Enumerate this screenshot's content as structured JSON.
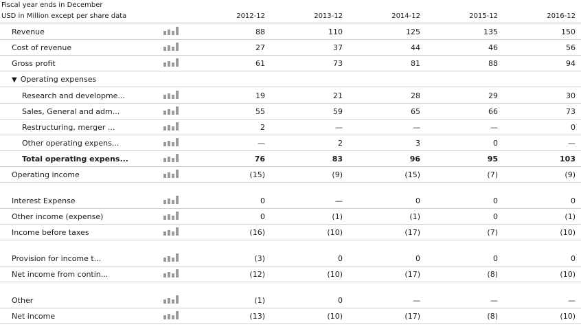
{
  "header": {
    "line1": "Fiscal year ends in December",
    "line2": "USD in Million except per share data",
    "years": [
      "2012-12",
      "2013-12",
      "2014-12",
      "2015-12",
      "2016-12"
    ]
  },
  "rows": [
    {
      "label": "Revenue",
      "values": [
        "88",
        "110",
        "125",
        "135",
        "150"
      ],
      "indent": 0,
      "bold": false,
      "spark": true,
      "lined": true
    },
    {
      "label": "Cost of revenue",
      "values": [
        "27",
        "37",
        "44",
        "46",
        "56"
      ],
      "indent": 0,
      "bold": false,
      "spark": true,
      "lined": true
    },
    {
      "label": "Gross profit",
      "values": [
        "61",
        "73",
        "81",
        "88",
        "94"
      ],
      "indent": 0,
      "bold": false,
      "spark": true,
      "lined": true
    },
    {
      "label": "Operating expenses",
      "values": [
        "",
        "",
        "",
        "",
        ""
      ],
      "indent": 0,
      "bold": false,
      "spark": false,
      "lined": true,
      "toggle": "▼"
    },
    {
      "label": "Research and developme...",
      "values": [
        "19",
        "21",
        "28",
        "29",
        "30"
      ],
      "indent": 1,
      "bold": false,
      "spark": true,
      "lined": true
    },
    {
      "label": "Sales, General and adm...",
      "values": [
        "55",
        "59",
        "65",
        "66",
        "73"
      ],
      "indent": 1,
      "bold": false,
      "spark": true,
      "lined": true
    },
    {
      "label": "Restructuring, merger ...",
      "values": [
        "2",
        "—",
        "—",
        "—",
        "0"
      ],
      "indent": 1,
      "bold": false,
      "spark": true,
      "lined": true
    },
    {
      "label": "Other operating expens...",
      "values": [
        "—",
        "2",
        "3",
        "0",
        "—"
      ],
      "indent": 1,
      "bold": false,
      "spark": true,
      "lined": true
    },
    {
      "label": "Total operating expens...",
      "values": [
        "76",
        "83",
        "96",
        "95",
        "103"
      ],
      "indent": 1,
      "bold": true,
      "spark": true,
      "lined": true
    },
    {
      "label": "Operating income",
      "values": [
        "(15)",
        "(9)",
        "(15)",
        "(7)",
        "(9)"
      ],
      "indent": 0,
      "bold": false,
      "spark": true,
      "lined": true
    },
    {
      "label": "Interest Expense",
      "values": [
        "0",
        "—",
        "0",
        "0",
        "0"
      ],
      "indent": 0,
      "bold": false,
      "spark": true,
      "lined": true
    },
    {
      "label": "Other income (expense)",
      "values": [
        "0",
        "(1)",
        "(1)",
        "0",
        "(1)"
      ],
      "indent": 0,
      "bold": false,
      "spark": true,
      "lined": true
    },
    {
      "label": "Income before taxes",
      "values": [
        "(16)",
        "(10)",
        "(17)",
        "(7)",
        "(10)"
      ],
      "indent": 0,
      "bold": false,
      "spark": true,
      "lined": true
    },
    {
      "label": "Provision for income t...",
      "values": [
        "(3)",
        "0",
        "0",
        "0",
        "0"
      ],
      "indent": 0,
      "bold": false,
      "spark": true,
      "lined": true
    },
    {
      "label": "Net income from contin...",
      "values": [
        "(12)",
        "(10)",
        "(17)",
        "(8)",
        "(10)"
      ],
      "indent": 0,
      "bold": false,
      "spark": true,
      "lined": true
    },
    {
      "label": "Other",
      "values": [
        "(1)",
        "0",
        "—",
        "—",
        "—"
      ],
      "indent": 0,
      "bold": false,
      "spark": true,
      "lined": true
    },
    {
      "label": "Net income",
      "values": [
        "(13)",
        "(10)",
        "(17)",
        "(8)",
        "(10)"
      ],
      "indent": 0,
      "bold": false,
      "spark": true,
      "lined": true
    }
  ]
}
